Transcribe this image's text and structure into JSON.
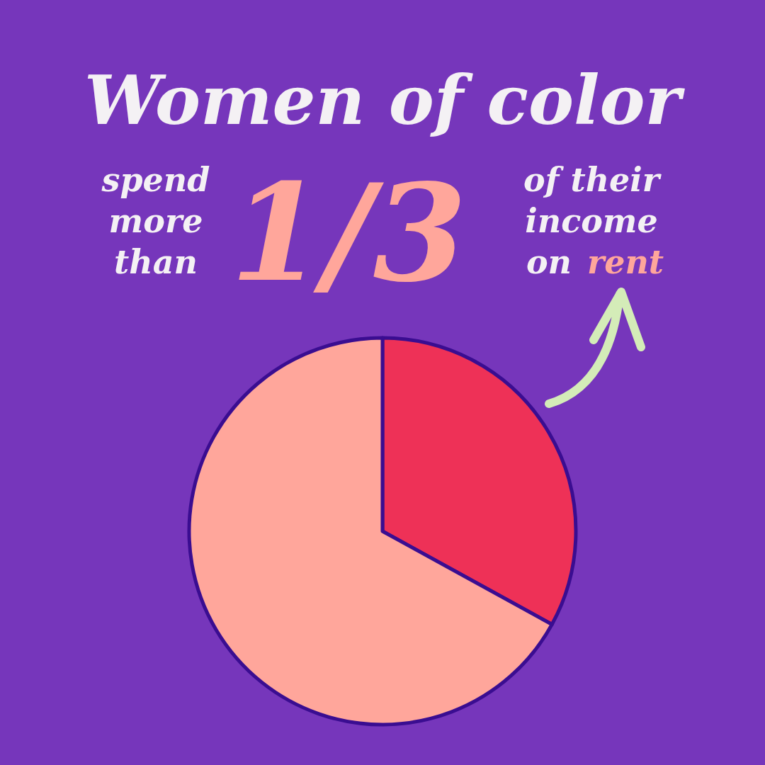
{
  "chart_data": {
    "type": "pie",
    "title": "Women of color",
    "annotations": [
      "spend",
      "more",
      "than",
      "1/3",
      "of their",
      "income",
      "on",
      "rent"
    ],
    "categories": [
      null,
      null
    ],
    "values": [
      33,
      67
    ],
    "colors": [
      "#ee3157",
      "#ffa69b"
    ]
  }
}
